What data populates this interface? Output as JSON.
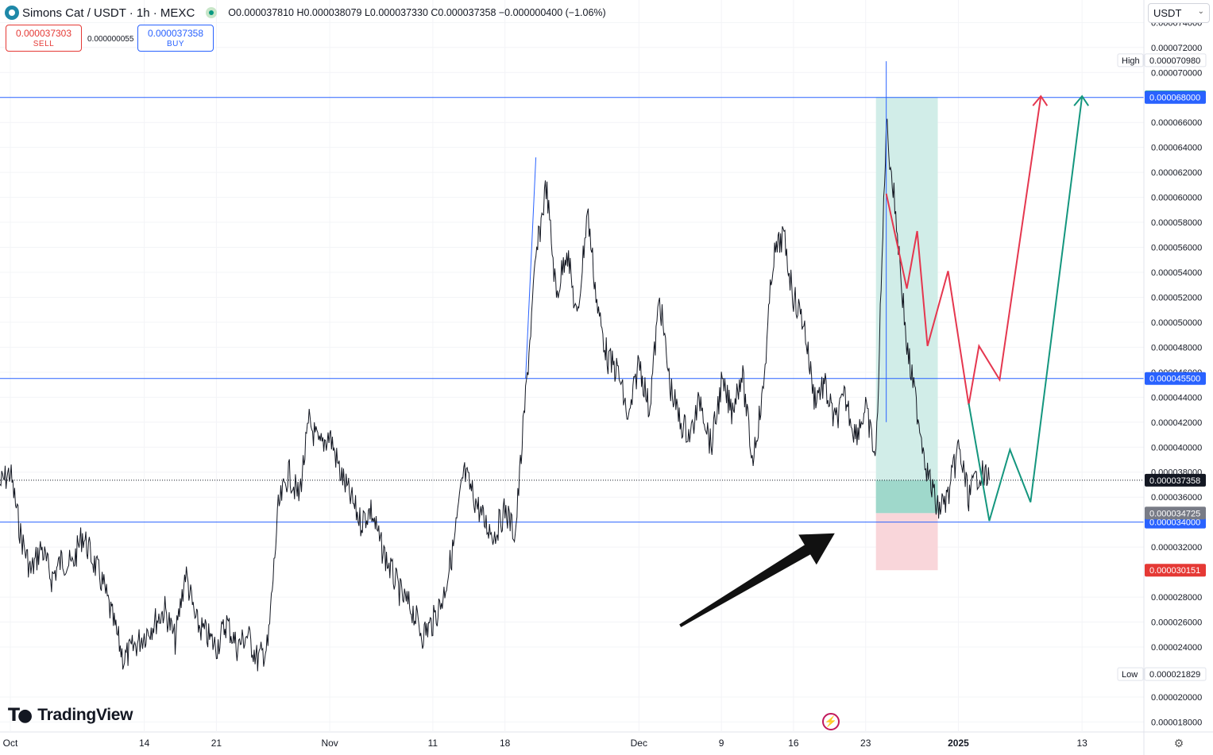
{
  "header": {
    "symbol": "Simons Cat / USDT · 1h · MEXC",
    "ohlc": "O0.000037810 H0.000038079 L0.000037330 C0.000037358 −0.000000400 (−1.06%)"
  },
  "trade": {
    "sell_price": "0.000037303",
    "sell_label": "SELL",
    "spread": "0.000000055",
    "buy_price": "0.000037358",
    "buy_label": "BUY"
  },
  "currency": "USDT",
  "brand": "TradingView",
  "colors": {
    "price_line": "#2962ff",
    "profit_zone": "#d1ede8",
    "stop_zone": "#f9d6da",
    "bearish_path": "#e5374f",
    "bullish_path": "#14967e",
    "arrow": "#111111"
  },
  "chart_data": {
    "type": "line",
    "symbol": "Simons Cat / USDT",
    "interval": "1h",
    "exchange": "MEXC",
    "y_axis_side": "right",
    "ylim": [
      1.72e-05,
      7.58e-05
    ],
    "y_ticks": [
      "0.000074000",
      "0.000072000",
      "0.000070000",
      "0.000066000",
      "0.000064000",
      "0.000062000",
      "0.000060000",
      "0.000058000",
      "0.000056000",
      "0.000054000",
      "0.000052000",
      "0.000050000",
      "0.000048000",
      "0.000046000",
      "0.000044000",
      "0.000042000",
      "0.000040000",
      "0.000038000",
      "0.000036000",
      "0.000032000",
      "0.000028000",
      "0.000026000",
      "0.000024000",
      "0.000020000",
      "0.000018000"
    ],
    "xlim": [
      "2024-09-30",
      "2025-01-19"
    ],
    "x_ticks": [
      {
        "date": "2024-10-01",
        "label": "Oct"
      },
      {
        "date": "2024-10-14",
        "label": "14"
      },
      {
        "date": "2024-10-21",
        "label": "21"
      },
      {
        "date": "2024-11-01",
        "label": "Nov"
      },
      {
        "date": "2024-11-11",
        "label": "11"
      },
      {
        "date": "2024-11-18",
        "label": "18"
      },
      {
        "date": "2024-12-01",
        "label": "Dec"
      },
      {
        "date": "2024-12-09",
        "label": "9"
      },
      {
        "date": "2024-12-16",
        "label": "16"
      },
      {
        "date": "2024-12-23",
        "label": "23"
      },
      {
        "date": "2025-01-01",
        "label": "2025"
      },
      {
        "date": "2025-01-13",
        "label": "13"
      }
    ],
    "series": [
      {
        "price_path": [
          [
            "2024-09-30",
            3.7e-05
          ],
          [
            "2024-10-01",
            3.8e-05
          ],
          [
            "2024-10-02",
            3.3e-05
          ],
          [
            "2024-10-03",
            3e-05
          ],
          [
            "2024-10-04",
            3.2e-05
          ],
          [
            "2024-10-05",
            2.95e-05
          ],
          [
            "2024-10-06",
            3.1e-05
          ],
          [
            "2024-10-07",
            3.05e-05
          ],
          [
            "2024-10-08",
            3.3e-05
          ],
          [
            "2024-10-09",
            3.1e-05
          ],
          [
            "2024-10-10",
            2.9e-05
          ],
          [
            "2024-10-11",
            2.6e-05
          ],
          [
            "2024-10-12",
            2.3e-05
          ],
          [
            "2024-10-13",
            2.4e-05
          ],
          [
            "2024-10-14",
            2.5e-05
          ],
          [
            "2024-10-15",
            2.6e-05
          ],
          [
            "2024-10-16",
            2.7e-05
          ],
          [
            "2024-10-17",
            2.45e-05
          ],
          [
            "2024-10-18",
            3e-05
          ],
          [
            "2024-10-19",
            2.6e-05
          ],
          [
            "2024-10-20",
            2.5e-05
          ],
          [
            "2024-10-21",
            2.4e-05
          ],
          [
            "2024-10-22",
            2.6e-05
          ],
          [
            "2024-10-23",
            2.4e-05
          ],
          [
            "2024-10-24",
            2.5e-05
          ],
          [
            "2024-10-25",
            2.3e-05
          ],
          [
            "2024-10-26",
            2.4e-05
          ],
          [
            "2024-10-27",
            3.5e-05
          ],
          [
            "2024-10-28",
            3.8e-05
          ],
          [
            "2024-10-29",
            3.6e-05
          ],
          [
            "2024-10-30",
            4.2e-05
          ],
          [
            "2024-10-31",
            4e-05
          ],
          [
            "2024-11-01",
            4.1e-05
          ],
          [
            "2024-11-02",
            3.8e-05
          ],
          [
            "2024-11-03",
            3.6e-05
          ],
          [
            "2024-11-04",
            3.4e-05
          ],
          [
            "2024-11-05",
            3.5e-05
          ],
          [
            "2024-11-06",
            3.2e-05
          ],
          [
            "2024-11-07",
            3e-05
          ],
          [
            "2024-11-08",
            2.8e-05
          ],
          [
            "2024-11-09",
            2.7e-05
          ],
          [
            "2024-11-10",
            2.5e-05
          ],
          [
            "2024-11-11",
            2.6e-05
          ],
          [
            "2024-11-12",
            2.8e-05
          ],
          [
            "2024-11-13",
            3.2e-05
          ],
          [
            "2024-11-14",
            3.8e-05
          ],
          [
            "2024-11-15",
            3.6e-05
          ],
          [
            "2024-11-16",
            3.4e-05
          ],
          [
            "2024-11-17",
            3.3e-05
          ],
          [
            "2024-11-18",
            3.5e-05
          ],
          [
            "2024-11-19",
            3.3e-05
          ],
          [
            "2024-11-20",
            4.4e-05
          ],
          [
            "2024-11-21",
            5.5e-05
          ],
          [
            "2024-11-22",
            6.1e-05
          ],
          [
            "2024-11-23",
            5.2e-05
          ],
          [
            "2024-11-24",
            5.6e-05
          ],
          [
            "2024-11-25",
            5e-05
          ],
          [
            "2024-11-26",
            5.9e-05
          ],
          [
            "2024-11-27",
            5.1e-05
          ],
          [
            "2024-11-28",
            4.7e-05
          ],
          [
            "2024-11-29",
            4.6e-05
          ],
          [
            "2024-11-30",
            4.2e-05
          ],
          [
            "2024-12-01",
            4.7e-05
          ],
          [
            "2024-12-02",
            4.3e-05
          ],
          [
            "2024-12-03",
            5.2e-05
          ],
          [
            "2024-12-04",
            4.5e-05
          ],
          [
            "2024-12-05",
            4.2e-05
          ],
          [
            "2024-12-06",
            4.1e-05
          ],
          [
            "2024-12-07",
            4.4e-05
          ],
          [
            "2024-12-08",
            4e-05
          ],
          [
            "2024-12-09",
            4.5e-05
          ],
          [
            "2024-12-10",
            4.3e-05
          ],
          [
            "2024-12-11",
            4.6e-05
          ],
          [
            "2024-12-12",
            3.9e-05
          ],
          [
            "2024-12-13",
            4.4e-05
          ],
          [
            "2024-12-14",
            5.5e-05
          ],
          [
            "2024-12-15",
            5.7e-05
          ],
          [
            "2024-12-16",
            5.2e-05
          ],
          [
            "2024-12-17",
            5e-05
          ],
          [
            "2024-12-18",
            4.4e-05
          ],
          [
            "2024-12-19",
            4.5e-05
          ],
          [
            "2024-12-20",
            4.2e-05
          ],
          [
            "2024-12-21",
            4.4e-05
          ],
          [
            "2024-12-22",
            4.1e-05
          ],
          [
            "2024-12-23",
            4.3e-05
          ],
          [
            "2024-12-24",
            3.9e-05
          ],
          [
            "2024-12-25",
            6.6e-05
          ],
          [
            "2024-12-26",
            5.8e-05
          ],
          [
            "2024-12-27",
            4.8e-05
          ],
          [
            "2024-12-28",
            4.3e-05
          ],
          [
            "2024-12-29",
            3.8e-05
          ],
          [
            "2024-12-30",
            3.5e-05
          ],
          [
            "2024-12-31",
            3.6e-05
          ],
          [
            "2025-01-01",
            4e-05
          ],
          [
            "2025-01-02",
            3.6e-05
          ],
          [
            "2025-01-03",
            3.8e-05
          ],
          [
            "2025-01-04",
            3.74e-05
          ]
        ]
      }
    ],
    "horizontal_lines": [
      {
        "price": 6.8e-05,
        "label": "0.000068000"
      },
      {
        "price": 4.55e-05,
        "label": "0.000045500"
      },
      {
        "price": 3.4e-05,
        "label": "0.000034000"
      }
    ],
    "price_labels": {
      "high_label": "High",
      "high": "0.000070980",
      "target": "0.000068036",
      "current": "0.000037358",
      "entry": "0.000034725",
      "stop": "0.000030151",
      "low_label": "Low",
      "low": "0.000021829"
    },
    "position": {
      "type": "long",
      "entry": 3.4725e-05,
      "target": 6.8036e-05,
      "stop": 3.0151e-05
    },
    "annotations": [
      {
        "type": "path",
        "name": "bearish-scenario",
        "points": [
          [
            6.03e-05,
            5.27e-05,
            5.73e-05,
            4.81e-05,
            5.41e-05,
            4.34e-05,
            4.81e-05,
            4.54e-05,
            6.81e-05
          ]
        ]
      },
      {
        "type": "path",
        "name": "bullish-scenario",
        "points": [
          [
            4.35e-05,
            3.41e-05,
            3.98e-05,
            3.56e-05,
            6.81e-05
          ]
        ]
      },
      {
        "type": "arrow",
        "name": "pointer-arrow"
      }
    ]
  }
}
